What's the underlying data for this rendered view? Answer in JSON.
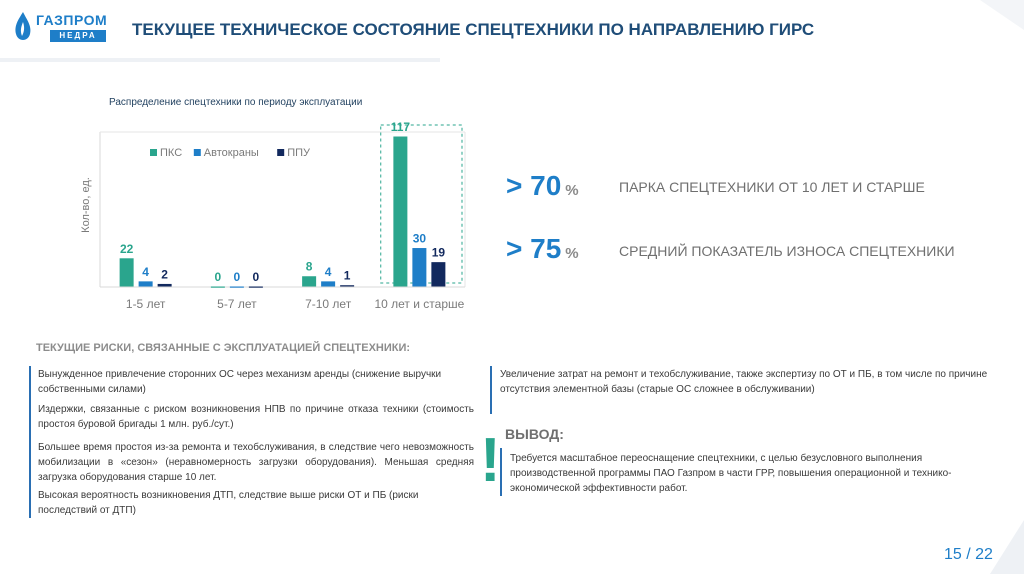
{
  "logo": {
    "brand": "ГАЗПРОМ",
    "sub": "НЕДРА"
  },
  "title": "ТЕКУЩЕЕ ТЕХНИЧЕСКОЕ СОСТОЯНИЕ СПЕЦТЕХНИКИ ПО НАПРАВЛЕНИЮ ГИРС",
  "chart_title": "Распределение спецтехники по периоду эксплуатации",
  "chart_data": {
    "type": "bar",
    "title": "Распределение спецтехники по периоду эксплуатации",
    "ylabel": "Кол-во, ед.",
    "xlabel": "",
    "categories": [
      "1-5 лет",
      "5-7 лет",
      "7-10 лет",
      "10 лет и старше"
    ],
    "series": [
      {
        "name": "ПКС",
        "values": [
          22,
          0,
          8,
          117
        ],
        "color": "#2aa58d"
      },
      {
        "name": "Автокраны",
        "values": [
          4,
          0,
          4,
          30
        ],
        "color": "#1e7ec8"
      },
      {
        "name": "ППУ",
        "values": [
          2,
          0,
          1,
          19
        ],
        "color": "#12295e"
      }
    ],
    "ylim": [
      0,
      117
    ],
    "legend": "top-center",
    "grid": false
  },
  "stats": [
    {
      "value": "> 70",
      "unit": "%",
      "text": "ПАРКА СПЕЦТЕХНИКИ ОТ 10 ЛЕТ И СТАРШЕ"
    },
    {
      "value": "> 75",
      "unit": "%",
      "text": "СРЕДНИЙ ПОКАЗАТЕЛЬ ИЗНОСА СПЕЦТЕХНИКИ"
    }
  ],
  "risks_title": "ТЕКУЩИЕ РИСКИ, СВЯЗАННЫЕ С ЭКСПЛУАТАЦИЕЙ СПЕЦТЕХНИКИ:",
  "risks": [
    "Вынужденное привлечение сторонних ОС через механизм аренды (снижение выручки собственными силами)",
    "Издержки, связанные с риском возникновения НПВ по причине отказа техники (стоимость простоя буровой бригады 1 млн. руб./сут.)",
    "Большее время простоя из-за ремонта и техобслуживания, в следствие чего невозможность мобилизации в «сезон» (неравномерность загрузки оборудования). Меньшая средняя загрузка оборудования старше 10 лет.",
    "Высокая вероятность возникновения ДТП, следствие выше риски ОТ и ПБ (риски последствий от ДТП)"
  ],
  "risk_right": "Увеличение затрат на ремонт и техобслуживание, также экспертизу по ОТ и ПБ, в том числе по причине отсутствия элементной базы (старые ОС сложнее в обслуживании)",
  "exclamation": "!",
  "conclusion_title": "ВЫВОД:",
  "conclusion_text": "Требуется масштабное переоснащение спецтехники, с целью безусловного выполнения производственной программы ПАО Газпром в части ГРР, повышения операционной и технико-экономической эффективности работ.",
  "page": "15 / 22"
}
